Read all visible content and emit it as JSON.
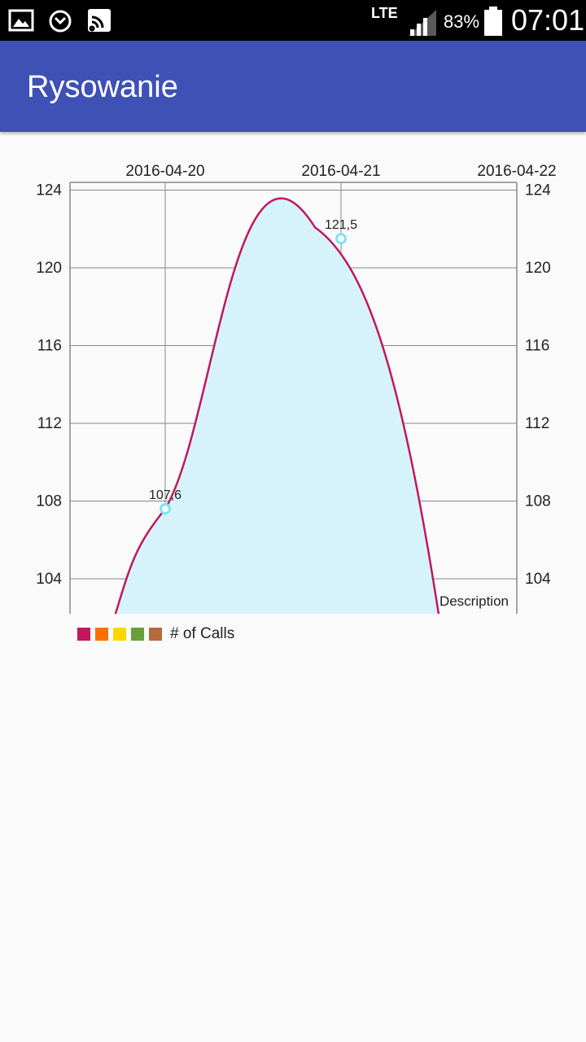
{
  "status_bar": {
    "network": "LTE",
    "battery": "83%",
    "time": "07:01",
    "icons": [
      "image-icon",
      "alarm-icon",
      "cast-icon",
      "signal-icon",
      "battery-icon"
    ]
  },
  "app_bar": {
    "title": "Rysowanie"
  },
  "chart_data": {
    "type": "area",
    "x": [
      "2016-04-20",
      "2016-04-21"
    ],
    "x_tick_labels": [
      "2016-04-20",
      "2016-04-21",
      "2016-04-22"
    ],
    "y_tick_labels": [
      "124",
      "120",
      "116",
      "112",
      "108",
      "104"
    ],
    "series": [
      {
        "name": "# of Calls",
        "values": [
          107.6,
          121.5
        ],
        "value_labels": [
          "107,6",
          "121,5"
        ],
        "line_color": "#c2185b",
        "fill_color": "#d6f3fb",
        "point_color": "#7fe3f5"
      }
    ],
    "ylim": [
      102.2,
      124.4
    ],
    "grid": true,
    "description": "Description",
    "legend": {
      "label": "# of Calls",
      "colors": [
        "#c2185b",
        "#ff6f00",
        "#ffd600",
        "#689f38",
        "#b56a3e"
      ]
    }
  }
}
